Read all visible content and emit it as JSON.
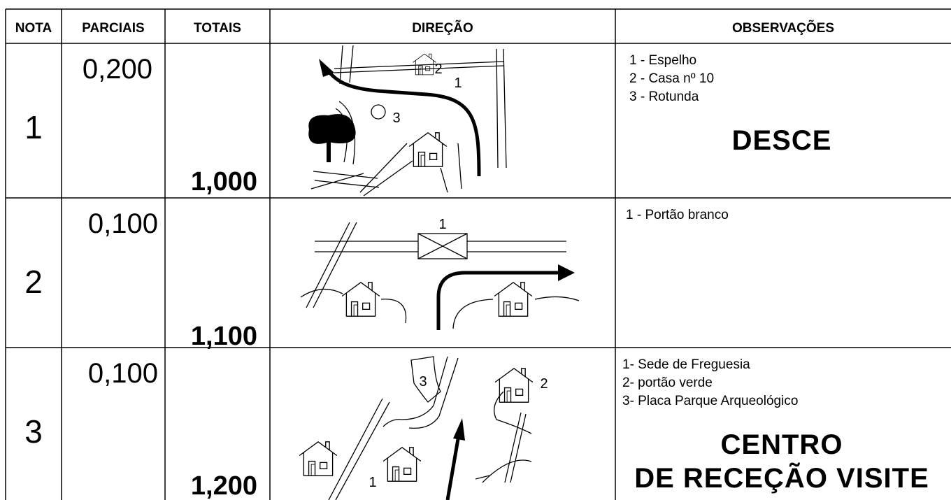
{
  "table": {
    "headers": [
      "NOTA",
      "PARCIAIS",
      "TOTAIS",
      "DIREÇÃO",
      "OBSERVAÇÕES"
    ],
    "rows": [
      {
        "nota": "1",
        "parcial": "0,200",
        "total": "1,000",
        "diagram_labels": [
          "2",
          "1",
          "3"
        ],
        "notes": [
          "1 - Espelho",
          "2 - Casa nº 10",
          "3 - Rotunda"
        ],
        "instruction": [
          "DESCE"
        ]
      },
      {
        "nota": "2",
        "parcial": "0,100",
        "total": "1,100",
        "diagram_labels": [
          "1"
        ],
        "notes": [
          "1 - Portão branco"
        ],
        "instruction": []
      },
      {
        "nota": "3",
        "parcial": "0,100",
        "total": "1,200",
        "diagram_labels": [
          "3",
          "2",
          "1"
        ],
        "notes": [
          "1- Sede de Freguesia",
          "2- portão verde",
          "3- Placa Parque Arqueológico"
        ],
        "instruction": [
          "CENTRO",
          "DE RECEÇÃO VISITE"
        ]
      }
    ]
  }
}
